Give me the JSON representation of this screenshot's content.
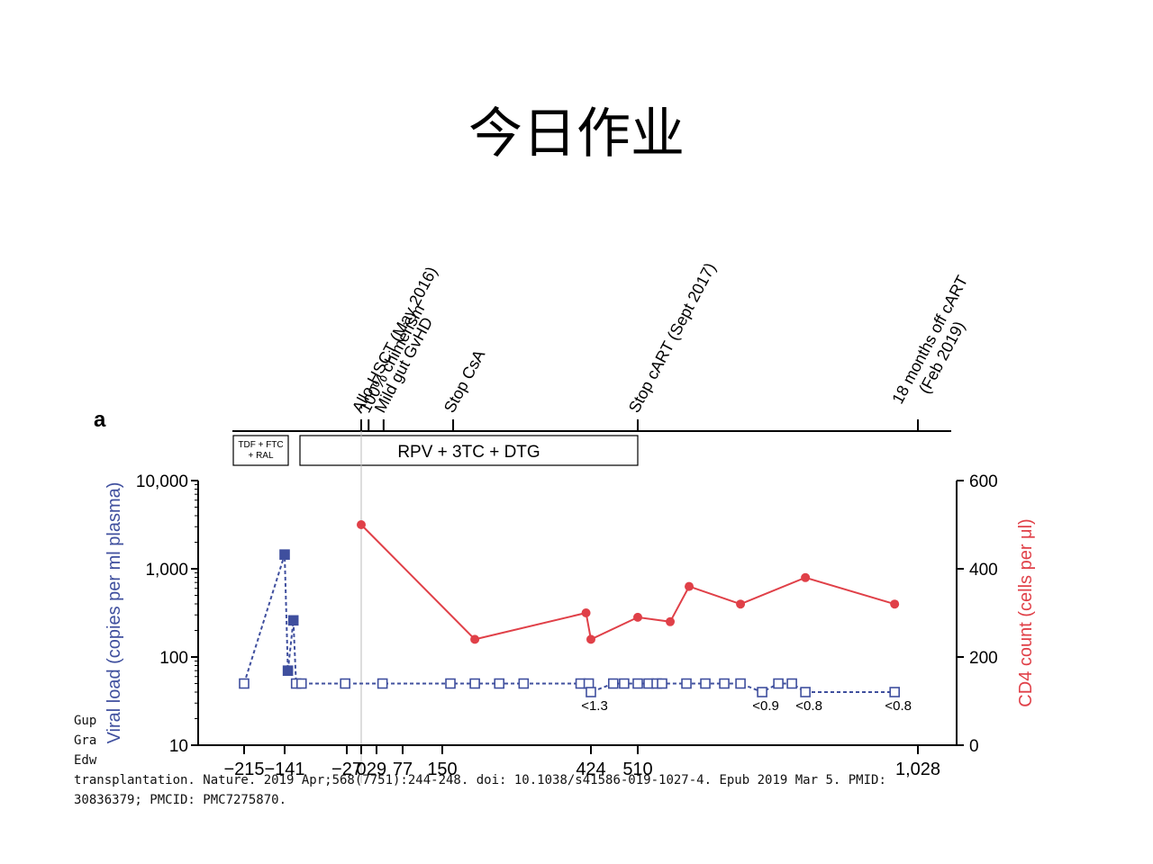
{
  "slide": {
    "title": "今日作业"
  },
  "citation": {
    "lines": [
      "Gup",
      "Gra",
      "Edw",
      "transplantation. Nature. 2019 Apr;568(7751):244-248. doi: 10.1038/s41586-019-1027-4. Epub 2019 Mar 5. PMID:",
      "30836379; PMCID: PMC7275870."
    ]
  },
  "chart_data": {
    "type": "line",
    "panel_label": "a",
    "events": [
      {
        "label": "Allo-HSCT (May 2016)",
        "day": 0
      },
      {
        "label": "100% chimerism",
        "day": 14
      },
      {
        "label": "Mild gut GvHD",
        "day": 42
      },
      {
        "label": "Stop CsA",
        "day": 170
      },
      {
        "label": "Stop cART (Sept 2017)",
        "day": 510
      },
      {
        "label": "18 months off cART\n(Feb 2019)",
        "day": 1028
      }
    ],
    "treatments": [
      {
        "label": "TDF + FTC\n+ RAL",
        "start_day": -215,
        "end_day": -141
      },
      {
        "label": "RPV + 3TC + DTG",
        "start_day": -130,
        "end_day": 510
      }
    ],
    "x_ticks": [
      "−215",
      "−141",
      "−27",
      "0",
      "29",
      "77",
      "150",
      "424",
      "510",
      "1,028"
    ],
    "y_left": {
      "label": "Viral load (copies per ml plasma)",
      "scale": "log",
      "range": [
        10,
        10000
      ],
      "ticks": [
        "10",
        "100",
        "1,000",
        "10,000"
      ]
    },
    "y_right": {
      "label": "CD4 count (cells per μl)",
      "range": [
        0,
        600
      ],
      "ticks": [
        "0",
        "200",
        "400",
        "600"
      ]
    },
    "series": [
      {
        "name": "Viral load",
        "axis": "left",
        "color": "#3f4f9e",
        "points": [
          {
            "day": -215,
            "value": 50,
            "marker": "open"
          },
          {
            "day": -141,
            "value": 1450,
            "marker": "filled"
          },
          {
            "day": -135,
            "value": 70,
            "marker": "filled"
          },
          {
            "day": -125,
            "value": 260,
            "marker": "filled"
          },
          {
            "day": -120,
            "value": 50,
            "marker": "open"
          },
          {
            "day": -110,
            "value": 50,
            "marker": "open"
          },
          {
            "day": -30,
            "value": 50,
            "marker": "open"
          },
          {
            "day": 40,
            "value": 50,
            "marker": "open"
          },
          {
            "day": 165,
            "value": 50,
            "marker": "open"
          },
          {
            "day": 210,
            "value": 50,
            "marker": "open"
          },
          {
            "day": 255,
            "value": 50,
            "marker": "open"
          },
          {
            "day": 300,
            "value": 50,
            "marker": "open"
          },
          {
            "day": 405,
            "value": 50,
            "marker": "open"
          },
          {
            "day": 420,
            "value": 50,
            "marker": "open"
          },
          {
            "day": 424,
            "value": 40,
            "marker": "open",
            "label": "<1.3"
          },
          {
            "day": 465,
            "value": 50,
            "marker": "open"
          },
          {
            "day": 485,
            "value": 50,
            "marker": "open"
          },
          {
            "day": 510,
            "value": 50,
            "marker": "open"
          },
          {
            "day": 530,
            "value": 50,
            "marker": "open"
          },
          {
            "day": 545,
            "value": 50,
            "marker": "open"
          },
          {
            "day": 555,
            "value": 50,
            "marker": "open"
          },
          {
            "day": 600,
            "value": 50,
            "marker": "open"
          },
          {
            "day": 635,
            "value": 50,
            "marker": "open"
          },
          {
            "day": 670,
            "value": 50,
            "marker": "open"
          },
          {
            "day": 700,
            "value": 50,
            "marker": "open"
          },
          {
            "day": 740,
            "value": 40,
            "marker": "open",
            "label": "<0.9"
          },
          {
            "day": 770,
            "value": 50,
            "marker": "open"
          },
          {
            "day": 795,
            "value": 50,
            "marker": "open"
          },
          {
            "day": 820,
            "value": 40,
            "marker": "open",
            "label": "<0.8"
          },
          {
            "day": 985,
            "value": 40,
            "marker": "open",
            "label": "<0.8"
          }
        ]
      },
      {
        "name": "CD4 count",
        "axis": "right",
        "color": "#e04048",
        "points": [
          {
            "day": 0,
            "value": 500
          },
          {
            "day": 210,
            "value": 240
          },
          {
            "day": 415,
            "value": 300
          },
          {
            "day": 424,
            "value": 240
          },
          {
            "day": 510,
            "value": 290
          },
          {
            "day": 570,
            "value": 280
          },
          {
            "day": 605,
            "value": 360
          },
          {
            "day": 700,
            "value": 320
          },
          {
            "day": 820,
            "value": 380
          },
          {
            "day": 985,
            "value": 320
          }
        ]
      }
    ]
  }
}
